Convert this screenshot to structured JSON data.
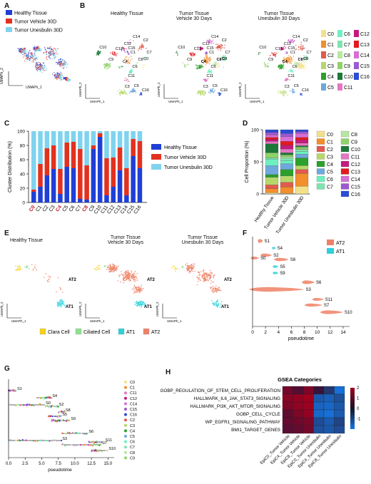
{
  "panels": {
    "A": "A",
    "B": "B",
    "C": "C",
    "D": "D",
    "E": "E",
    "F": "F",
    "G": "G",
    "H": "H"
  },
  "condition_legend": [
    {
      "label": "Healthy Tissue",
      "color": "#1f3fd6"
    },
    {
      "label": "Tumor Vehicle 30D",
      "color": "#e2321f"
    },
    {
      "label": "Tumor Unesbulin 30D",
      "color": "#7fd3ee"
    }
  ],
  "umap_axes": {
    "x": "UMAPh_1",
    "y": "UMAPh_2"
  },
  "panelB": {
    "titles": [
      "Healthy Tissue",
      "Tumor Tissue\nVehicle 30 Days",
      "Tumor Tissue\nUnesbulin 30 Days"
    ],
    "cluster_legend": [
      {
        "label": "C0",
        "color": "#f3e08a"
      },
      {
        "label": "C6",
        "color": "#6ff0c0"
      },
      {
        "label": "C12",
        "color": "#c51b7d"
      },
      {
        "label": "C1",
        "color": "#f28e2b"
      },
      {
        "label": "C7",
        "color": "#7fe3b0"
      },
      {
        "label": "C13",
        "color": "#e31a1c"
      },
      {
        "label": "C2",
        "color": "#e05a4f"
      },
      {
        "label": "C8",
        "color": "#b7e7a3"
      },
      {
        "label": "C14",
        "color": "#d66fd6"
      },
      {
        "label": "C3",
        "color": "#b6d86a"
      },
      {
        "label": "C9",
        "color": "#8ed36a"
      },
      {
        "label": "C15",
        "color": "#9b59d0"
      },
      {
        "label": "C4",
        "color": "#2ca02c"
      },
      {
        "label": "C10",
        "color": "#1b7837"
      },
      {
        "label": "C16",
        "color": "#2b4cd6"
      },
      {
        "label": "C5",
        "color": "#6fa8dc"
      },
      {
        "label": "C11",
        "color": "#e377c2"
      }
    ]
  },
  "panelC": {
    "chart_data": {
      "type": "bar",
      "ylabel": "Cluster Distribution (%)",
      "ylim": [
        0,
        100
      ],
      "categories": [
        "C0",
        "C1",
        "C2",
        "C3",
        "C4",
        "C5",
        "C6",
        "C7",
        "C8",
        "C9",
        "C10",
        "C11",
        "C12",
        "C13",
        "C14",
        "C15",
        "C16"
      ],
      "highlight": [
        "C0",
        "C4",
        "C8"
      ],
      "series": [
        {
          "name": "Healthy Tissue",
          "values": [
            15,
            22,
            38,
            47,
            12,
            50,
            48,
            5,
            4,
            75,
            92,
            10,
            22,
            45,
            10,
            65,
            48
          ]
        },
        {
          "name": "Tumor Vehicle 30D",
          "values": [
            3,
            32,
            38,
            33,
            35,
            34,
            37,
            70,
            48,
            5,
            5,
            52,
            41,
            32,
            38,
            24,
            38
          ]
        },
        {
          "name": "Tumor Unesbulin 30D",
          "values": [
            82,
            46,
            24,
            20,
            53,
            16,
            15,
            25,
            48,
            20,
            3,
            38,
            37,
            23,
            52,
            11,
            14
          ]
        }
      ],
      "yticks": [
        "0",
        "20",
        "40",
        "60",
        "80",
        "100"
      ]
    }
  },
  "panelD": {
    "chart_data": {
      "type": "bar",
      "ylabel": "Cell Proportion (%)",
      "ylim": [
        0,
        100
      ],
      "categories": [
        "Healthy Tissue",
        "Tumor Vehicle 30D",
        "Tumor Unesbulin 30D"
      ],
      "yticks": [
        "0",
        "50",
        "100"
      ],
      "series": [
        {
          "name": "C0",
          "values": [
            2,
            1,
            12
          ]
        },
        {
          "name": "C1",
          "values": [
            6,
            10,
            20
          ]
        },
        {
          "name": "C2",
          "values": [
            6,
            7,
            6
          ]
        },
        {
          "name": "C3",
          "values": [
            12,
            10,
            6
          ]
        },
        {
          "name": "C4",
          "values": [
            4,
            10,
            12
          ]
        },
        {
          "name": "C5",
          "values": [
            14,
            9,
            6
          ]
        },
        {
          "name": "C6",
          "values": [
            10,
            5,
            4
          ]
        },
        {
          "name": "C7",
          "values": [
            2,
            4,
            3
          ]
        },
        {
          "name": "C8",
          "values": [
            0,
            2,
            1
          ]
        },
        {
          "name": "C9",
          "values": [
            8,
            3,
            3
          ]
        },
        {
          "name": "C10",
          "values": [
            14,
            3,
            2
          ]
        },
        {
          "name": "C11",
          "values": [
            4,
            6,
            4
          ]
        },
        {
          "name": "C12",
          "values": [
            3,
            6,
            5
          ]
        },
        {
          "name": "C13",
          "values": [
            3,
            6,
            4
          ]
        },
        {
          "name": "C14",
          "values": [
            4,
            7,
            6
          ]
        },
        {
          "name": "C15",
          "values": [
            4,
            5,
            3
          ]
        },
        {
          "name": "C16",
          "values": [
            4,
            6,
            3
          ]
        }
      ],
      "legend": [
        {
          "label": "C0",
          "color": "#f3e08a"
        },
        {
          "label": "C8",
          "color": "#b7e7a3"
        },
        {
          "label": "C1",
          "color": "#f28e2b"
        },
        {
          "label": "C9",
          "color": "#8ed36a"
        },
        {
          "label": "C2",
          "color": "#e05a4f"
        },
        {
          "label": "C10",
          "color": "#1b7837"
        },
        {
          "label": "C3",
          "color": "#b6d86a"
        },
        {
          "label": "C11",
          "color": "#e377c2"
        },
        {
          "label": "C4",
          "color": "#2ca02c"
        },
        {
          "label": "C12",
          "color": "#c51b7d"
        },
        {
          "label": "C5",
          "color": "#6fa8dc"
        },
        {
          "label": "C13",
          "color": "#e31a1c"
        },
        {
          "label": "C6",
          "color": "#6ff0c0"
        },
        {
          "label": "C14",
          "color": "#d66fd6"
        },
        {
          "label": "C7",
          "color": "#7fe3b0"
        },
        {
          "label": "C15",
          "color": "#9b59d0"
        },
        {
          "label": "",
          "color": ""
        },
        {
          "label": "C16",
          "color": "#2b4cd6"
        }
      ]
    }
  },
  "panelE": {
    "titles": [
      "Healthy Tissue",
      "Tumor Tissue\nVehicle 30 Days",
      "Tumor Tissue\nUnesbulin 30 Days"
    ],
    "labels": {
      "at2": "AT2",
      "at1": "AT1"
    },
    "legend": [
      {
        "label": "Clara Cell",
        "color": "#f7d21a"
      },
      {
        "label": "Ciliated Cell",
        "color": "#8fe08f"
      },
      {
        "label": "AT1",
        "color": "#2ed1d9"
      },
      {
        "label": "AT2",
        "color": "#ee8165"
      }
    ]
  },
  "panelF": {
    "xlabel": "pseudotime",
    "xticks": [
      "0",
      "2",
      "4",
      "6",
      "8",
      "10",
      "12",
      "14"
    ],
    "legend": [
      {
        "label": "AT2",
        "color": "#ee8165"
      },
      {
        "label": "AT1",
        "color": "#2ed1d9"
      }
    ],
    "states": [
      "S0",
      "S1",
      "S2",
      "S3",
      "S4",
      "S5",
      "S6",
      "S7",
      "S8",
      "S9",
      "S10",
      "S11"
    ]
  },
  "panelG": {
    "xlabel": "pseudotime",
    "xticks": [
      "0.0",
      "2.5",
      "5.0",
      "7.5",
      "10.0",
      "12.5",
      "15.0"
    ],
    "states": [
      "S0",
      "S1",
      "S2",
      "S3",
      "S4",
      "S5",
      "S6",
      "S7",
      "S8",
      "S9",
      "S10",
      "S11"
    ],
    "legend": [
      {
        "label": "C0",
        "color": "#f3e08a"
      },
      {
        "label": "C1",
        "color": "#f28e2b"
      },
      {
        "label": "C11",
        "color": "#e377c2"
      },
      {
        "label": "C12",
        "color": "#c51b7d"
      },
      {
        "label": "C14",
        "color": "#d66fd6"
      },
      {
        "label": "C15",
        "color": "#9b59d0"
      },
      {
        "label": "C16",
        "color": "#2b4cd6"
      },
      {
        "label": "C2",
        "color": "#e05a4f"
      },
      {
        "label": "C3",
        "color": "#b6d86a"
      },
      {
        "label": "C4",
        "color": "#2ca02c"
      },
      {
        "label": "C5",
        "color": "#6fa8dc"
      },
      {
        "label": "C6",
        "color": "#6ff0c0"
      },
      {
        "label": "C7",
        "color": "#7fe3b0"
      },
      {
        "label": "C8",
        "color": "#b7e7a3"
      },
      {
        "label": "C9",
        "color": "#8ed36a"
      }
    ]
  },
  "panelH": {
    "title": "GSEA Categories",
    "chart_data": {
      "type": "heatmap",
      "rows": [
        "GOBP_REGULATION_OF_STEM_CELL_PROLIFERATION",
        "HALLMARK_IL6_JAK_STAT3_SIGNALING",
        "HALLMARK_PI3K_AKT_MTOR_SIGNALING",
        "GOBP_CELL_CYCLE",
        "WP_EGFR1_SIGNALING_PATHWAY",
        "BMI1_TARGET_GENES"
      ],
      "columns": [
        "EpiC0_Tumor Vehicle",
        "EpiC4_Tumor Vehicle",
        "EpiC8_Tumor Vehicle",
        "EpiC0_Tumor Unesbulin",
        "EpiC4_Tumor Unesbulin",
        "EpiC8_Tumor Unesbulin"
      ],
      "values": [
        [
          1.2,
          0.6,
          1.4,
          0.1,
          -0.4,
          -1.8
        ],
        [
          1.6,
          1.8,
          2.0,
          -1.2,
          -1.4,
          -1.0
        ],
        [
          1.4,
          1.7,
          1.9,
          -1.5,
          -1.6,
          -1.2
        ],
        [
          0.8,
          1.4,
          1.8,
          -1.6,
          -1.8,
          -1.3
        ],
        [
          0.9,
          1.1,
          1.3,
          -0.9,
          -1.3,
          -0.7
        ],
        [
          0.7,
          0.9,
          1.2,
          -1.0,
          -1.2,
          -0.9
        ]
      ],
      "colorbar_ticks": [
        "2",
        "1",
        "0",
        "-1"
      ]
    }
  }
}
